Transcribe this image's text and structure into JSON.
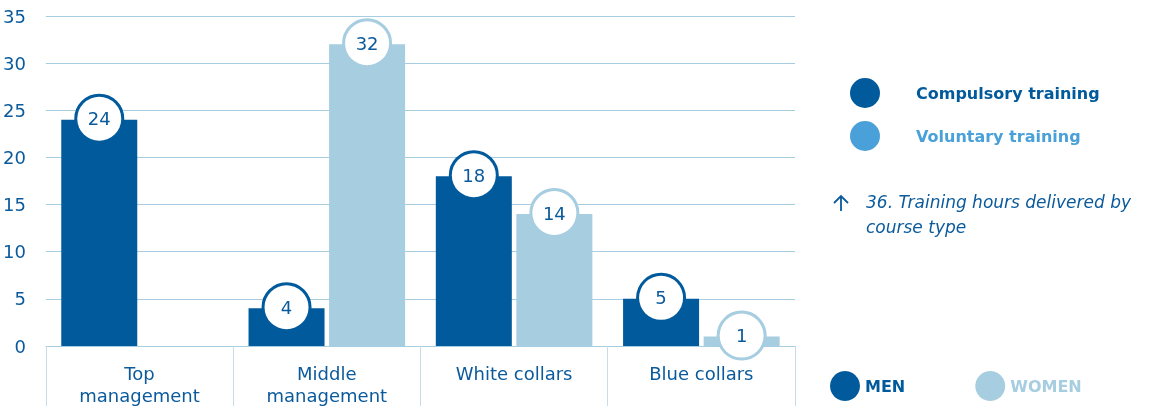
{
  "chart_data": {
    "type": "bar",
    "categories": [
      "Top\nmanagement",
      "Middle\nmanagement",
      "White collars",
      "Blue collars"
    ],
    "series": [
      {
        "name": "MEN",
        "color": "#005a9c",
        "values": [
          24,
          4,
          18,
          5
        ]
      },
      {
        "name": "WOMEN",
        "color": "#a6cde0",
        "values": [
          null,
          32,
          14,
          1
        ]
      }
    ],
    "ylim": [
      0,
      35
    ],
    "yticks": [
      0,
      5,
      10,
      15,
      20,
      25,
      30,
      35
    ],
    "grid": "y",
    "legend": "bottom right",
    "data_labels": true,
    "annotations": [
      "Compulsory training",
      "Voluntary training",
      "36. Training hours delivered by course type"
    ]
  }
}
